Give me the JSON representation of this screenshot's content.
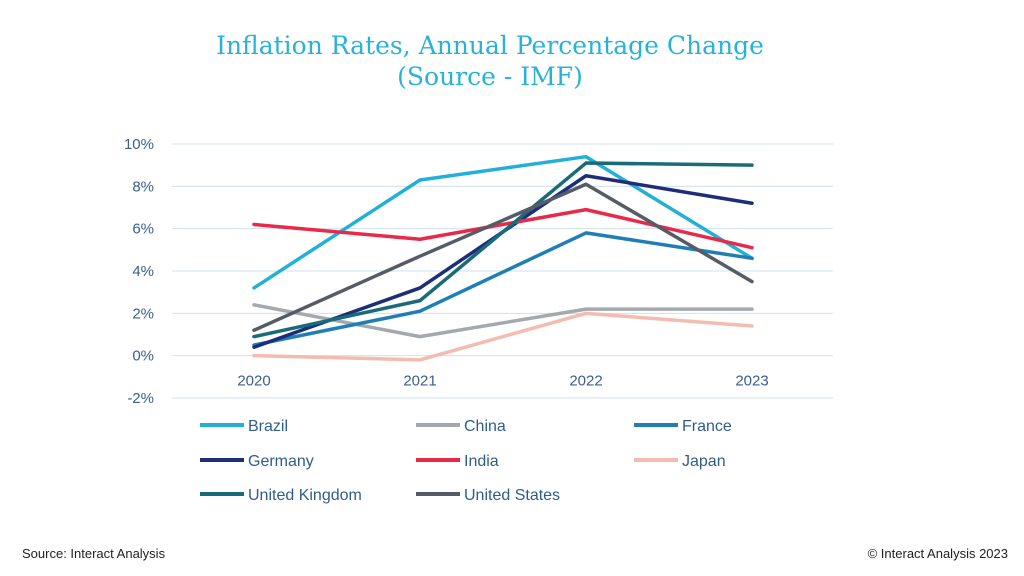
{
  "copyright": "© Interact Analysis 2023",
  "source_note": "Source: Interact Analysis",
  "chart_data": {
    "type": "line",
    "title": "Inflation Rates, Annual Percentage Change",
    "subtitle": "(Source - IMF)",
    "categories": [
      "2020",
      "2021",
      "2022",
      "2023"
    ],
    "ylim": [
      -2,
      10
    ],
    "yticks": [
      10,
      8,
      6,
      4,
      2,
      0,
      -2
    ],
    "ytick_labels": [
      "10%",
      "8%",
      "6%",
      "4%",
      "2%",
      "0%",
      "-2%"
    ],
    "grid": true,
    "legend_position": "bottom",
    "xlabel": "",
    "ylabel": "",
    "series": [
      {
        "name": "Brazil",
        "color": "#23b0d6",
        "values": [
          3.2,
          8.3,
          9.4,
          4.6
        ]
      },
      {
        "name": "China",
        "color": "#a3a9ae",
        "values": [
          2.4,
          0.9,
          2.2,
          2.2
        ]
      },
      {
        "name": "France",
        "color": "#1f7fb2",
        "values": [
          0.5,
          2.1,
          5.8,
          4.6
        ]
      },
      {
        "name": "Germany",
        "color": "#1d2d7a",
        "values": [
          0.4,
          3.2,
          8.5,
          7.2
        ]
      },
      {
        "name": "India",
        "color": "#e8294a",
        "values": [
          6.2,
          5.5,
          6.9,
          5.1
        ]
      },
      {
        "name": "Japan",
        "color": "#f4bcb0",
        "values": [
          0.0,
          -0.2,
          2.0,
          1.4
        ]
      },
      {
        "name": "United Kingdom",
        "color": "#1a6b78",
        "values": [
          0.9,
          2.6,
          9.1,
          9.0
        ]
      },
      {
        "name": "United States",
        "color": "#555c66",
        "values": [
          1.2,
          4.7,
          8.1,
          3.5
        ]
      }
    ]
  }
}
